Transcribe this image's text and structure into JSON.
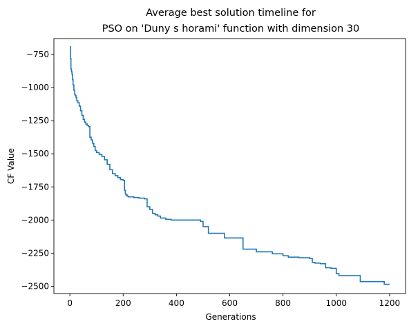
{
  "chart_data": {
    "type": "line",
    "title_line1": "Average best solution timeline for",
    "title_line2": "PSO on 'Duny s horami' function with dimension 30",
    "xlabel": "Generations",
    "ylabel": "CF Value",
    "xlim": [
      -60,
      1260
    ],
    "ylim": [
      -2555,
      -630
    ],
    "x_ticks": [
      0,
      200,
      400,
      600,
      800,
      1000,
      1200
    ],
    "x_tick_labels": [
      "0",
      "200",
      "400",
      "600",
      "800",
      "1000",
      "1200"
    ],
    "y_ticks": [
      -750,
      -1000,
      -1250,
      -1500,
      -1750,
      -2000,
      -2250,
      -2500
    ],
    "y_tick_labels": [
      "−750",
      "−1000",
      "−1250",
      "−1500",
      "−1750",
      "−2000",
      "−2250",
      "−2500"
    ],
    "grid": false,
    "series": [
      {
        "color": "#1f77b4",
        "x": [
          0,
          2,
          4,
          6,
          8,
          10,
          12,
          15,
          18,
          20,
          23,
          26,
          30,
          35,
          40,
          45,
          50,
          55,
          60,
          65,
          70,
          75,
          80,
          85,
          90,
          95,
          100,
          110,
          120,
          130,
          140,
          150,
          160,
          170,
          180,
          190,
          200,
          205,
          208,
          210,
          215,
          220,
          240,
          260,
          280,
          290,
          300,
          310,
          320,
          330,
          340,
          360,
          380,
          400,
          420,
          440,
          460,
          480,
          490,
          500,
          520,
          540,
          560,
          580,
          600,
          620,
          640,
          650,
          660,
          680,
          700,
          720,
          740,
          760,
          780,
          800,
          820,
          840,
          860,
          880,
          900,
          910,
          920,
          940,
          960,
          980,
          1000,
          1010,
          1030,
          1050,
          1070,
          1090,
          1100,
          1120,
          1140,
          1160,
          1170,
          1180,
          1200
        ],
        "y": [
          -690,
          -780,
          -860,
          -880,
          -900,
          -940,
          -980,
          -1020,
          -1050,
          -1060,
          -1075,
          -1100,
          -1115,
          -1140,
          -1175,
          -1210,
          -1240,
          -1260,
          -1275,
          -1285,
          -1295,
          -1375,
          -1395,
          -1420,
          -1445,
          -1475,
          -1490,
          -1505,
          -1520,
          -1545,
          -1580,
          -1620,
          -1650,
          -1665,
          -1680,
          -1695,
          -1700,
          -1775,
          -1800,
          -1810,
          -1820,
          -1825,
          -1830,
          -1835,
          -1840,
          -1900,
          -1920,
          -1950,
          -1960,
          -1970,
          -1985,
          -1995,
          -2000,
          -2000,
          -2000,
          -2000,
          -2000,
          -2000,
          -2010,
          -2050,
          -2100,
          -2100,
          -2100,
          -2135,
          -2135,
          -2135,
          -2135,
          -2220,
          -2220,
          -2220,
          -2240,
          -2240,
          -2240,
          -2255,
          -2255,
          -2270,
          -2280,
          -2280,
          -2285,
          -2285,
          -2290,
          -2320,
          -2325,
          -2330,
          -2360,
          -2365,
          -2405,
          -2420,
          -2420,
          -2420,
          -2420,
          -2465,
          -2465,
          -2465,
          -2465,
          -2465,
          -2465,
          -2485,
          -2485
        ]
      }
    ]
  }
}
